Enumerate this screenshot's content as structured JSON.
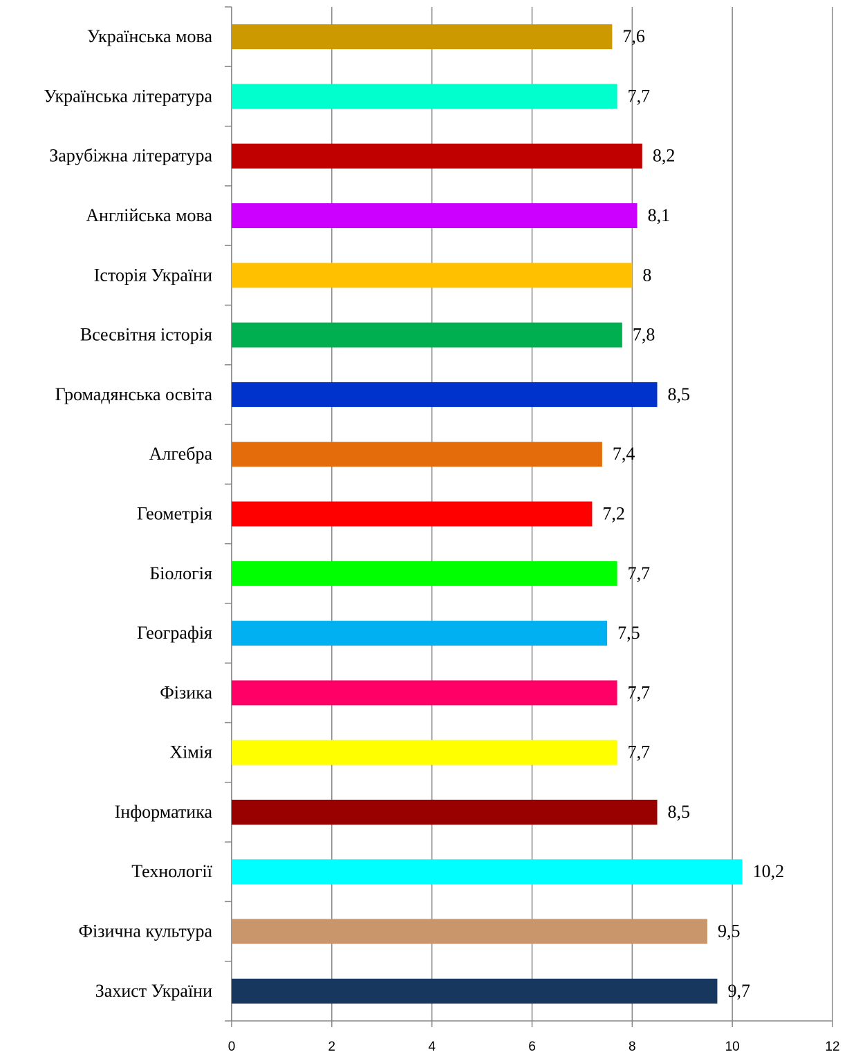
{
  "chart_data": {
    "type": "barh",
    "categories": [
      "Українська мова",
      "Українська література",
      "Зарубіжна література",
      "Англійська мова",
      "Історія України",
      "Всесвітня історія",
      "Громадянська освіта",
      "Алгебра",
      "Геометрія",
      "Біологія",
      "Географія",
      "Фізика",
      "Хімія",
      "Інформатика",
      "Технології",
      "Фізична культура",
      "Захист України"
    ],
    "values": [
      7.6,
      7.7,
      8.2,
      8.1,
      8,
      7.8,
      8.5,
      7.4,
      7.2,
      7.7,
      7.5,
      7.7,
      7.7,
      8.5,
      10.2,
      9.5,
      9.7
    ],
    "value_labels": [
      "7,6",
      "7,7",
      "8,2",
      "8,1",
      "8",
      "7,8",
      "8,5",
      "7,4",
      "7,2",
      "7,7",
      "7,5",
      "7,7",
      "7,7",
      "8,5",
      "10,2",
      "9,5",
      "9,7"
    ],
    "colors": [
      "#cc9900",
      "#00ffcc",
      "#c00000",
      "#cc00ff",
      "#ffc000",
      "#00b050",
      "#0033cc",
      "#e46c0a",
      "#ff0000",
      "#00ff00",
      "#00b0f0",
      "#ff0066",
      "#ffff00",
      "#990000",
      "#00ffff",
      "#c8966a",
      "#17375e"
    ],
    "xlim": [
      0,
      12
    ],
    "xticks": [
      0,
      2,
      4,
      6,
      8,
      10,
      12
    ],
    "grid": true
  }
}
